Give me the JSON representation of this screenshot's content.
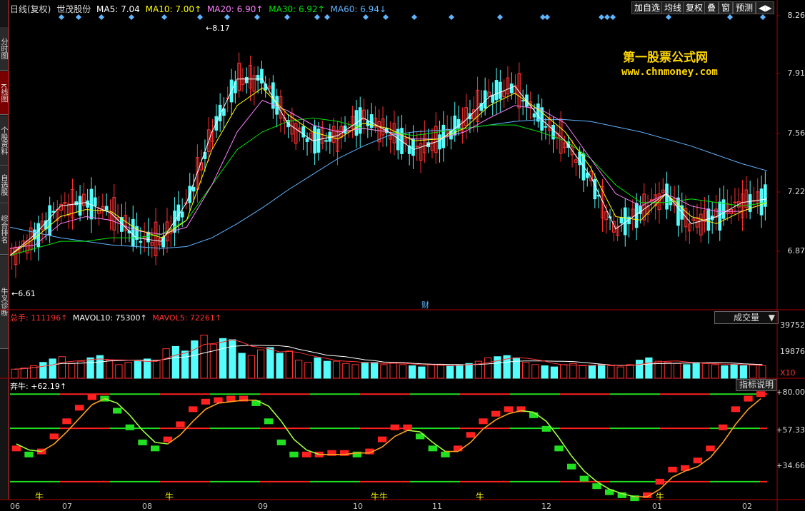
{
  "side_tabs": [
    "分时图",
    "K线图",
    "个股资料",
    "自选股",
    "综合排名",
    "牛叉诊断"
  ],
  "header": {
    "period": "日线(复权)",
    "stock": "世茂股份",
    "ma5": "MA5: 7.04",
    "ma10": "MA10: 7.00↑",
    "ma20": "MA20: 6.90↑",
    "ma30": "MA30: 6.92↑",
    "ma60": "MA60: 6.94↓"
  },
  "toolbar": [
    "加自选",
    "均线",
    "复权",
    "叠",
    "窗",
    "预测",
    "◀▶"
  ],
  "watermark": {
    "line1": "第一股票公式网",
    "line2": "www.chnmoney.com"
  },
  "price_axis": [
    "8.26",
    "7.91",
    "7.56",
    "7.22",
    "6.87"
  ],
  "annotations": {
    "high": "8.17",
    "low": "6.61",
    "fin": "财"
  },
  "volume": {
    "label": "总手: 111196↑",
    "mavol10": "MAVOL10: 75300↑",
    "mavol5": "MAVOL5: 72261↑",
    "selector": "成交量",
    "axis": [
      "39752",
      "19876"
    ],
    "unit": "X10"
  },
  "indicator": {
    "label": "奔牛: +62.19↑",
    "help": "指标说明",
    "axis": [
      "+80.00",
      "+57.33",
      "+34.66"
    ],
    "signal": "牛",
    "signal_double": "牛牛"
  },
  "x_labels": [
    "06",
    "07",
    "08",
    "09",
    "10",
    "11",
    "12",
    "01",
    "02"
  ],
  "colors": {
    "up": "#ff3232",
    "down": "#54fcfc",
    "ma5": "#ffffff",
    "ma10": "#ffff00",
    "ma20": "#ff80ff",
    "ma30": "#00e600",
    "ma60": "#5fb4ff",
    "axis": "#b00000"
  },
  "chart_data": [
    {
      "type": "line",
      "title": "世茂股份 日线(复权)",
      "ylim": [
        6.6,
        8.3
      ],
      "series": [
        {
          "name": "MA60",
          "values": [
            7.06,
            7.03,
            7.0,
            6.98,
            6.96,
            6.95,
            6.94,
            6.95,
            7.0,
            7.08,
            7.17,
            7.27,
            7.36,
            7.45,
            7.52,
            7.58,
            7.6,
            7.61,
            7.62,
            7.64,
            7.66,
            7.67,
            7.67,
            7.66,
            7.63,
            7.6,
            7.56,
            7.52,
            7.47,
            7.42,
            7.38
          ]
        },
        {
          "name": "MA30",
          "values": [
            6.9,
            6.94,
            6.98,
            6.98,
            7.0,
            7.0,
            7.02,
            7.1,
            7.3,
            7.5,
            7.6,
            7.66,
            7.68,
            7.66,
            7.62,
            7.6,
            7.58,
            7.6,
            7.62,
            7.64,
            7.64,
            7.6,
            7.55,
            7.45,
            7.3,
            7.2,
            7.2,
            7.22,
            7.2,
            7.18,
            7.2
          ]
        },
        {
          "name": "MA20",
          "values": [
            6.94,
            6.96,
            7.08,
            7.12,
            7.1,
            7.04,
            7.02,
            7.06,
            7.3,
            7.6,
            7.78,
            7.72,
            7.64,
            7.6,
            7.62,
            7.6,
            7.56,
            7.56,
            7.6,
            7.68,
            7.75,
            7.73,
            7.65,
            7.45,
            7.25,
            7.18,
            7.25,
            7.18,
            7.15,
            7.15,
            7.2
          ]
        },
        {
          "name": "MA10",
          "values": [
            6.9,
            7.0,
            7.12,
            7.16,
            7.15,
            7.05,
            7.0,
            7.1,
            7.5,
            7.75,
            7.85,
            7.7,
            7.6,
            7.56,
            7.65,
            7.62,
            7.55,
            7.56,
            7.62,
            7.75,
            7.82,
            7.72,
            7.6,
            7.4,
            7.12,
            7.1,
            7.25,
            7.12,
            7.08,
            7.15,
            7.2
          ]
        },
        {
          "name": "MA5",
          "values": [
            6.9,
            7.02,
            7.18,
            7.2,
            7.14,
            7.0,
            6.98,
            7.2,
            7.6,
            7.9,
            7.9,
            7.65,
            7.55,
            7.58,
            7.68,
            7.6,
            7.5,
            7.55,
            7.66,
            7.8,
            7.86,
            7.68,
            7.55,
            7.35,
            7.05,
            7.15,
            7.25,
            7.08,
            7.12,
            7.2,
            7.22
          ]
        }
      ]
    },
    {
      "type": "bar",
      "title": "成交量",
      "ylim": [
        0,
        49000
      ],
      "values": [
        8000,
        9000,
        11000,
        14000,
        17000,
        19000,
        13000,
        15000,
        18000,
        20000,
        16000,
        12000,
        14000,
        15000,
        17000,
        16000,
        26000,
        28000,
        24000,
        33000,
        38000,
        30000,
        35000,
        34000,
        22000,
        20000,
        25000,
        27000,
        22000,
        24000,
        16000,
        14000,
        18000,
        15000,
        15000,
        13000,
        12000,
        14000,
        14000,
        12000,
        14000,
        12000,
        11000,
        10000,
        12000,
        12000,
        11000,
        12000,
        13000,
        15000,
        18000,
        19000,
        20000,
        18000,
        14000,
        12000,
        11000,
        10000,
        12000,
        13000,
        11000,
        11000,
        12000,
        11000,
        10000,
        12000,
        16000,
        18000,
        15000,
        14000,
        13000,
        12000,
        14000,
        13000,
        12000,
        11000,
        12000,
        11000,
        12000,
        11111
      ]
    },
    {
      "type": "line",
      "title": "奔牛",
      "ylim": [
        12,
        82
      ],
      "series": [
        {
          "name": "奔牛",
          "values": [
            44,
            40,
            42,
            52,
            62,
            71,
            78,
            77,
            69,
            58,
            48,
            44,
            50,
            60,
            70,
            75,
            76,
            77,
            77,
            74,
            62,
            48,
            40,
            40,
            40,
            41,
            41,
            40,
            42,
            50,
            58,
            58,
            52,
            44,
            40,
            44,
            53,
            62,
            67,
            70,
            70,
            66,
            57,
            44,
            32,
            24,
            19,
            15,
            13,
            11,
            13,
            22,
            30,
            31,
            36,
            44,
            58,
            70,
            77,
            80
          ]
        },
        {
          "name": "",
          "values": [
            47,
            43,
            42,
            47,
            55,
            64,
            73,
            77,
            74,
            66,
            56,
            48,
            47,
            53,
            62,
            70,
            74,
            75,
            76,
            76,
            72,
            62,
            50,
            43,
            40,
            40,
            40,
            41,
            41,
            45,
            52,
            56,
            55,
            48,
            42,
            42,
            48,
            57,
            63,
            67,
            69,
            68,
            62,
            51,
            39,
            29,
            22,
            17,
            14,
            12,
            12,
            17,
            25,
            29,
            32,
            38,
            48,
            60,
            70,
            77
          ]
        }
      ]
    }
  ]
}
